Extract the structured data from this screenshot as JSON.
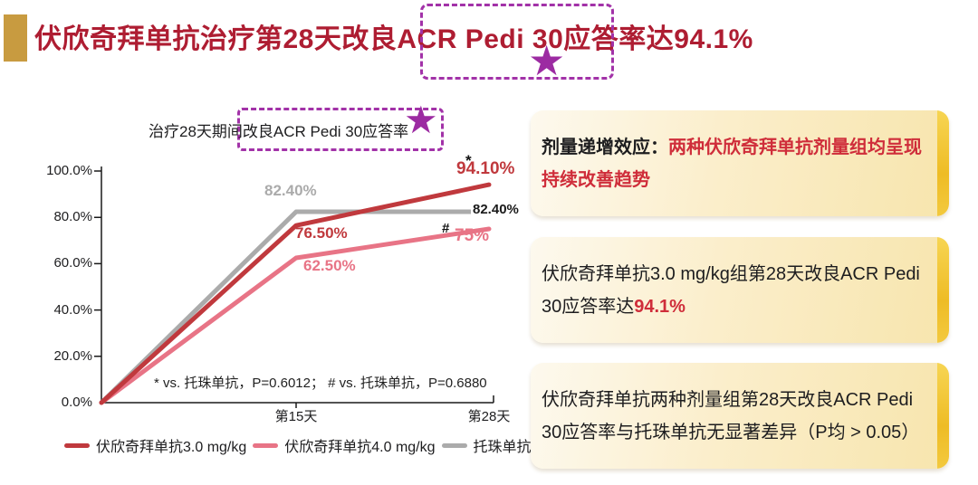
{
  "slide": {
    "title": "伏欣奇拜单抗治疗第28天改良ACR Pedi 30应答率达94.1%",
    "star": "★",
    "accent_gold": "#c89b40",
    "title_color": "#ae1d32",
    "highlight_purple": "#9c2ba2"
  },
  "chart_data": {
    "type": "line",
    "title": "治疗28天期间改良ACR Pedi 30应答率",
    "x": [
      0,
      15,
      28
    ],
    "x_tick_labels": [
      "第15天",
      "第28天"
    ],
    "y_tick_labels": [
      "100.0%",
      "80.0%",
      "60.0%",
      "40.0%",
      "20.0%",
      "0.0%"
    ],
    "ylim": [
      0,
      100
    ],
    "grid": false,
    "legend_position": "bottom",
    "series": [
      {
        "name": "伏欣奇拜单抗3.0 mg/kg",
        "color": "#c0393d",
        "values": [
          0,
          76.5,
          94.1
        ],
        "point_labels": [
          "",
          "76.50%",
          "94.10%"
        ],
        "significance_mark": "*"
      },
      {
        "name": "伏欣奇拜单抗4.0 mg/kg",
        "color": "#e87486",
        "values": [
          0,
          62.5,
          75
        ],
        "point_labels": [
          "",
          "62.50%",
          "75%"
        ],
        "significance_mark": "#"
      },
      {
        "name": "托珠单抗",
        "color": "#ababab",
        "values": [
          0,
          82.4,
          82.4
        ],
        "point_labels": [
          "",
          "82.40%",
          "82.40%"
        ],
        "end_label_color": "#1a1a1a"
      }
    ],
    "footnote": "* vs. 托珠单抗，P=0.6012；  # vs. 托珠单抗，P=0.6880"
  },
  "callouts": [
    {
      "label": "剂量递增效应：",
      "highlight": "两种伏欣奇拜单抗剂量组均呈现持续改善趋势"
    },
    {
      "prefix": "伏欣奇拜单抗3.0 mg/kg组第28天改良ACR Pedi ",
      "highlight": "94.1%",
      "prefix2": "30应答率达"
    },
    {
      "text": "伏欣奇拜单抗两种剂量组第28天改良ACR Pedi 30应答率与托珠单抗无显著差异（P均 > 0.05）"
    }
  ]
}
